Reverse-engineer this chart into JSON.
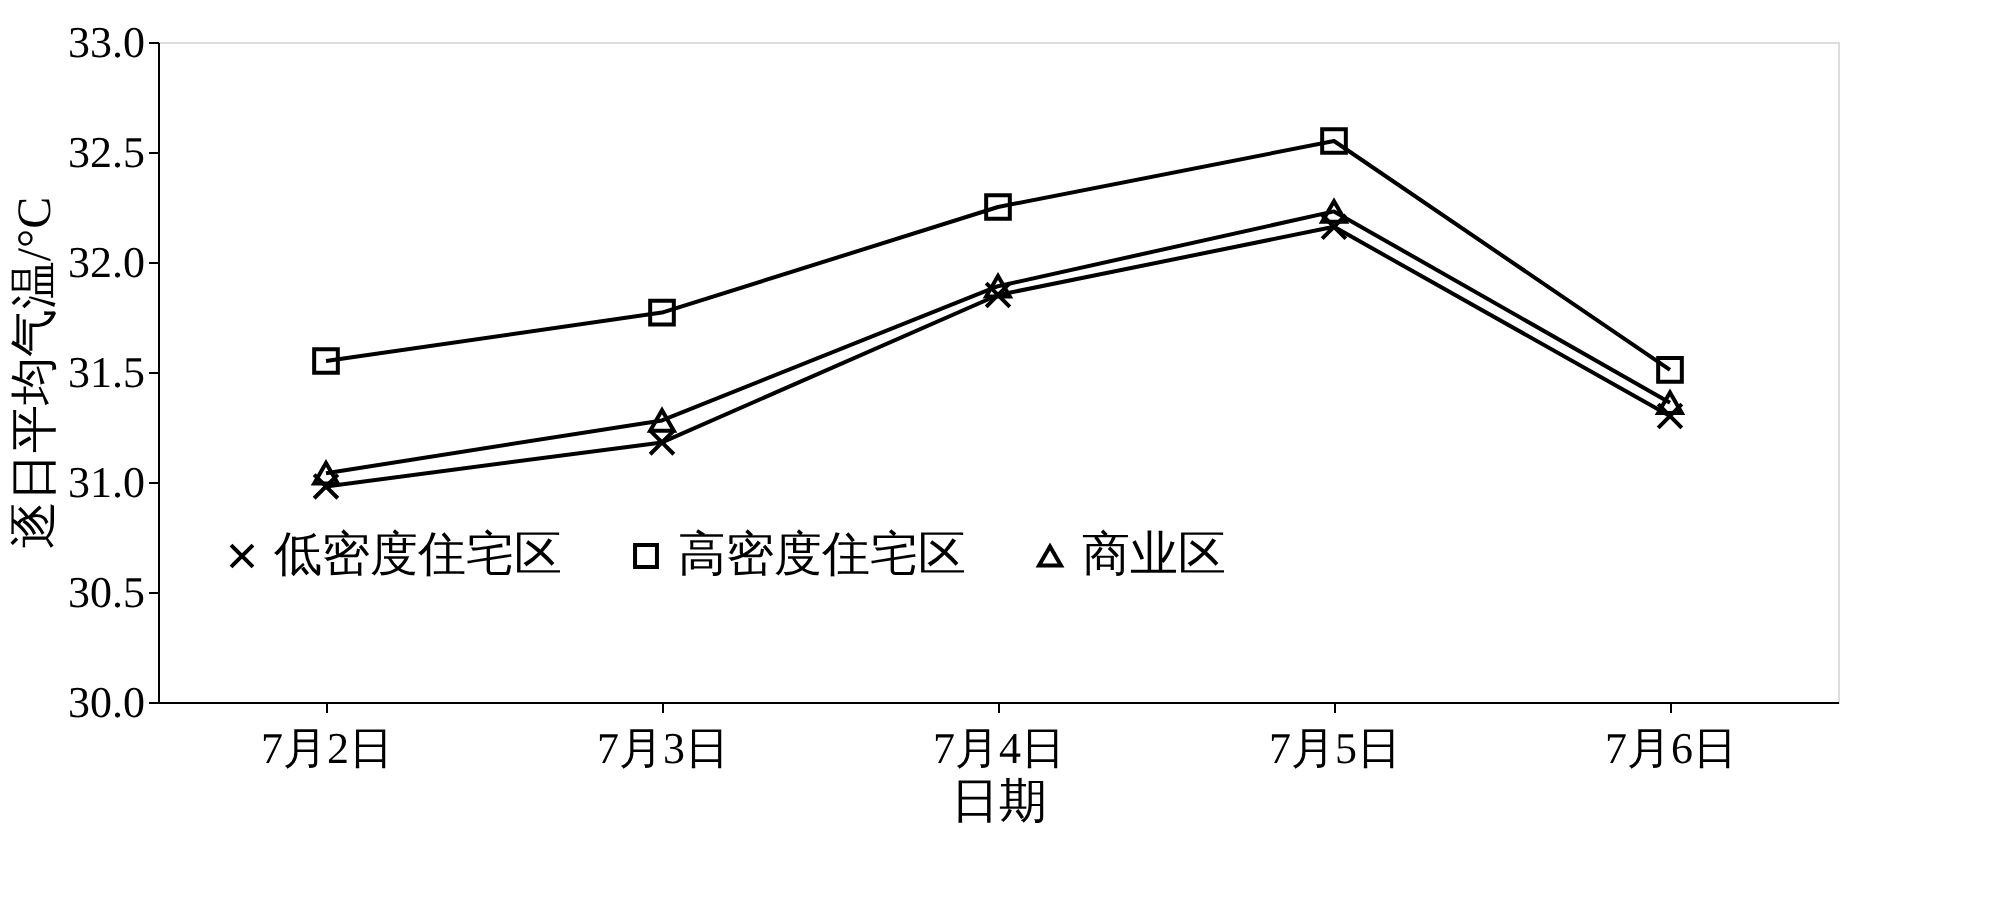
{
  "chart_data": {
    "type": "line",
    "xlabel": "日期",
    "ylabel": "逐日平均气温/°C",
    "categories": [
      "7月2日",
      "7月3日",
      "7月4日",
      "7月5日",
      "7月6日"
    ],
    "series": [
      {
        "name": "低密度住宅区",
        "color": "#000000",
        "marker": "cross",
        "values": [
          30.98,
          31.18,
          31.85,
          32.16,
          31.3
        ]
      },
      {
        "name": "高密度住宅区",
        "color": "#000000",
        "marker": "square",
        "values": [
          31.55,
          31.77,
          32.25,
          32.55,
          31.51
        ]
      },
      {
        "name": "商业区",
        "color": "#000000",
        "marker": "triangle",
        "values": [
          31.04,
          31.28,
          31.89,
          32.23,
          31.36
        ]
      }
    ],
    "ylim": [
      30,
      33
    ],
    "yticks": [
      {
        "value": 30,
        "label": "30.0"
      },
      {
        "value": 30.5,
        "label": "30.5"
      },
      {
        "value": 31,
        "label": "31.0"
      },
      {
        "value": 31.5,
        "label": "31.5"
      },
      {
        "value": 32,
        "label": "32.0"
      },
      {
        "value": 32.5,
        "label": "32.5"
      },
      {
        "value": 33,
        "label": "33.0"
      }
    ],
    "grid": false,
    "legend": "bottom",
    "line_style": "solid"
  }
}
